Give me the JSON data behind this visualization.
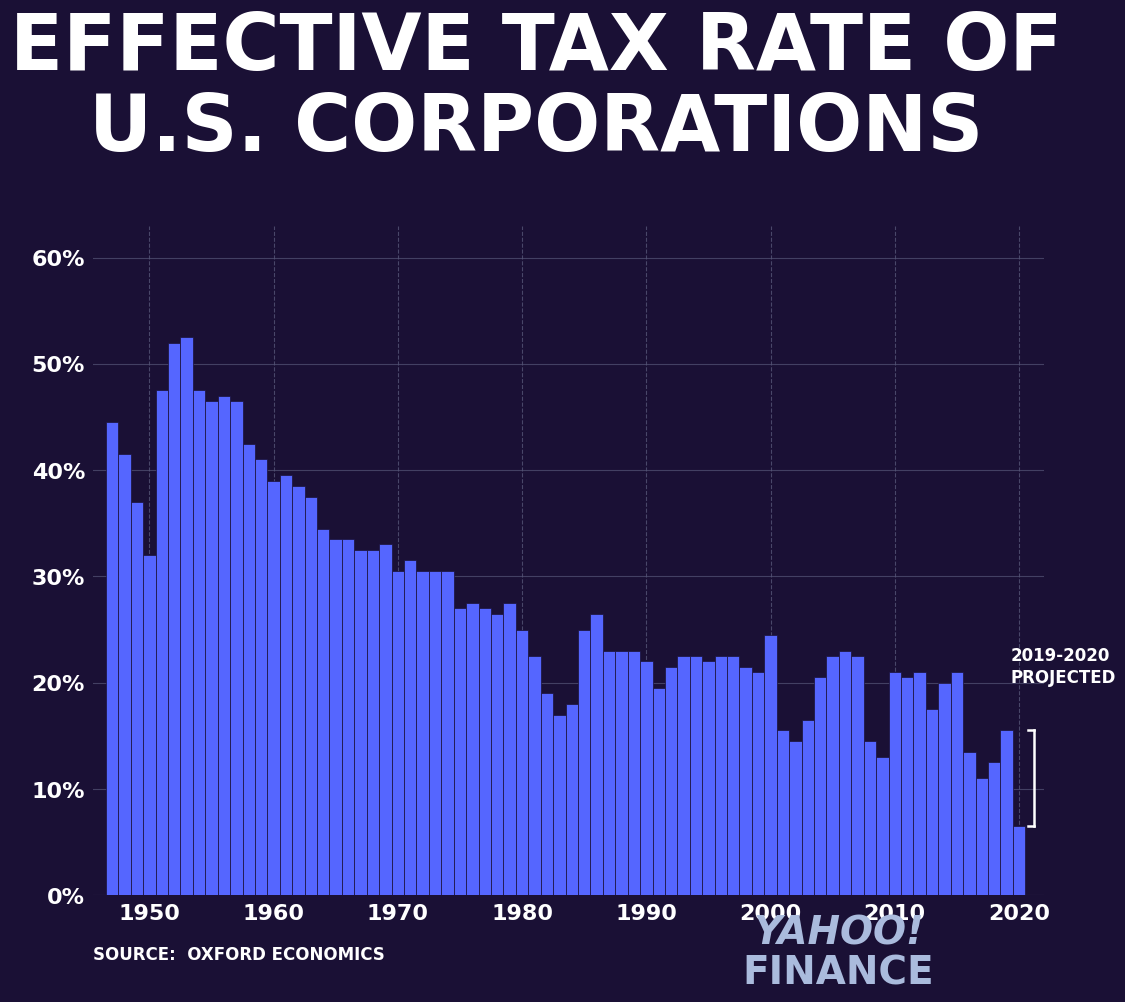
{
  "title_line1": "EFFECTIVE TAX RATE OF",
  "title_line2": "U.S. CORPORATIONS",
  "background_color": "#1a1035",
  "bar_color": "#5566ff",
  "text_color": "#ffffff",
  "grid_color": "#555577",
  "source_text": "SOURCE:  OXFORD ECONOMICS",
  "annotation_text": "2019-2020\nPROJECTED",
  "ytick_labels": [
    "0%",
    "10%",
    "20%",
    "30%",
    "40%",
    "50%",
    "60%"
  ],
  "ytick_values": [
    0,
    10,
    20,
    30,
    40,
    50,
    60
  ],
  "xtick_values": [
    1950,
    1960,
    1970,
    1980,
    1990,
    2000,
    2010,
    2020
  ],
  "years": [
    1947,
    1948,
    1949,
    1950,
    1951,
    1952,
    1953,
    1954,
    1955,
    1956,
    1957,
    1958,
    1959,
    1960,
    1961,
    1962,
    1963,
    1964,
    1965,
    1966,
    1967,
    1968,
    1969,
    1970,
    1971,
    1972,
    1973,
    1974,
    1975,
    1976,
    1977,
    1978,
    1979,
    1980,
    1981,
    1982,
    1983,
    1984,
    1985,
    1986,
    1987,
    1988,
    1989,
    1990,
    1991,
    1992,
    1993,
    1994,
    1995,
    1996,
    1997,
    1998,
    1999,
    2000,
    2001,
    2002,
    2003,
    2004,
    2005,
    2006,
    2007,
    2008,
    2009,
    2010,
    2011,
    2012,
    2013,
    2014,
    2015,
    2016,
    2017,
    2018,
    2019,
    2020
  ],
  "values": [
    44.5,
    41.5,
    37.0,
    32.0,
    47.5,
    52.0,
    52.5,
    47.5,
    46.5,
    47.0,
    46.5,
    42.5,
    41.0,
    39.0,
    39.5,
    38.5,
    37.5,
    34.5,
    33.5,
    33.5,
    32.5,
    32.5,
    33.0,
    30.5,
    31.5,
    30.5,
    30.5,
    30.5,
    27.0,
    27.5,
    27.0,
    26.5,
    27.5,
    25.0,
    22.5,
    19.0,
    17.0,
    18.0,
    25.0,
    26.5,
    23.0,
    23.0,
    23.0,
    22.0,
    19.5,
    21.5,
    22.5,
    22.5,
    22.0,
    22.5,
    22.5,
    21.5,
    21.0,
    24.5,
    15.5,
    14.5,
    16.5,
    20.5,
    22.5,
    23.0,
    22.5,
    14.5,
    13.0,
    21.0,
    20.5,
    21.0,
    17.5,
    20.0,
    21.0,
    13.5,
    11.0,
    12.5,
    15.5,
    6.5
  ],
  "yahoo_color": "#aabbdd",
  "xlim_left": 1945.5,
  "xlim_right": 2022.0,
  "ylim_top": 63
}
